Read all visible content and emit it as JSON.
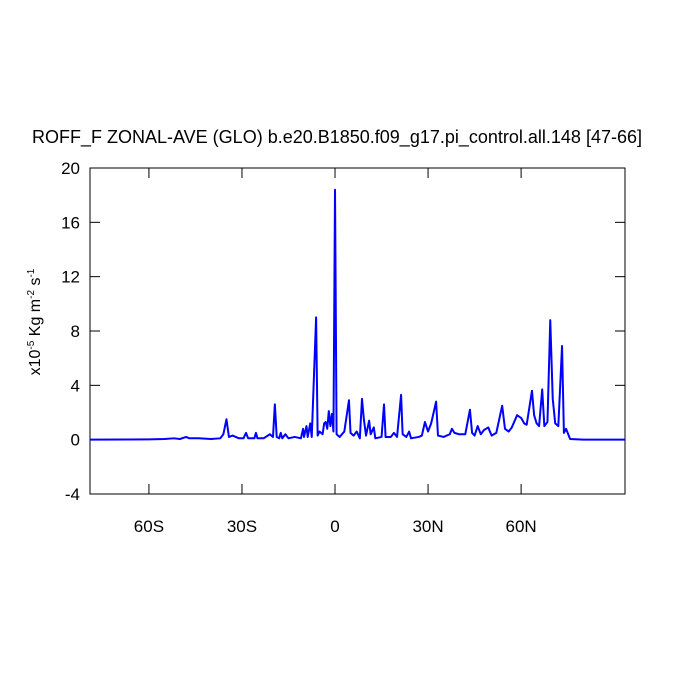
{
  "chart_data": {
    "type": "line",
    "title": "ROFF_F ZONAL-AVE (GLO) b.e20.B1850.f09_g17.pi_control.all.148 [47-66]",
    "ylabel": [
      "x10",
      "-5",
      " Kg m",
      "-2",
      " s",
      "-1"
    ],
    "color": "#0000ff",
    "xlim": [
      -79,
      93.5
    ],
    "xticks": [
      {
        "value": -60,
        "label": "60S"
      },
      {
        "value": -30,
        "label": "30S"
      },
      0,
      {
        "value": 30,
        "label": "30N"
      },
      {
        "value": 60,
        "label": "60N"
      }
    ],
    "ylim": [
      -4,
      20
    ],
    "yticks": [
      -4,
      0,
      4,
      8,
      12,
      16,
      20
    ],
    "x": [
      -79,
      -60,
      -55,
      -52,
      -50,
      -48,
      -47,
      -44,
      -40,
      -37,
      -36,
      -35,
      -34.2,
      -33,
      -31,
      -29.5,
      -28.7,
      -28,
      -26,
      -25.5,
      -25,
      -23,
      -21,
      -20,
      -19.4,
      -18.8,
      -18,
      -17.5,
      -17,
      -16,
      -15,
      -13,
      -11,
      -10.3,
      -10,
      -9.2,
      -8.8,
      -8,
      -7.5,
      -6.1,
      -5.6,
      -5,
      -4,
      -3.5,
      -3,
      -2.5,
      -2,
      -1.5,
      -1,
      -0.5,
      0,
      0.5,
      1.5,
      3,
      4.5,
      5,
      6,
      7,
      8,
      8.7,
      9.3,
      10,
      11,
      11.5,
      12.5,
      13,
      15,
      15.8,
      16.3,
      18,
      19,
      20,
      21.3,
      21.8,
      23,
      23.9,
      24.5,
      27,
      28,
      29,
      30,
      31,
      32.6,
      33.2,
      35,
      37,
      37.7,
      38.5,
      40,
      42,
      43.5,
      44.2,
      45,
      46,
      47,
      48,
      49.4,
      50.5,
      52,
      53.9,
      54.8,
      56,
      57,
      58.7,
      60,
      61,
      61.8,
      63.5,
      64.2,
      65,
      65.8,
      66.8,
      67.5,
      68.5,
      69.4,
      70.2,
      71,
      72,
      73.2,
      73.8,
      74.5,
      75.8,
      80,
      93.5
    ],
    "values": [
      0,
      0.02,
      0.05,
      0.1,
      0.05,
      0.2,
      0.1,
      0.1,
      0.05,
      0.1,
      0.4,
      1.5,
      0.2,
      0.3,
      0.1,
      0.1,
      0.5,
      0.1,
      0.1,
      0.5,
      0.1,
      0.1,
      0.4,
      0.2,
      2.6,
      0.2,
      0.1,
      0.5,
      0.1,
      0.4,
      0.1,
      0.2,
      0.1,
      0.8,
      0.2,
      1.0,
      0.2,
      1.2,
      0.2,
      9.0,
      0.3,
      0.6,
      0.4,
      1.2,
      1.3,
      0.8,
      2.1,
      1.0,
      1.9,
      0.6,
      18.4,
      0.4,
      0.2,
      0.6,
      2.9,
      0.5,
      0.3,
      0.6,
      0.1,
      3.0,
      1.5,
      0.3,
      1.4,
      0.4,
      0.9,
      0.1,
      0.2,
      2.6,
      0.2,
      0.2,
      0.5,
      0.2,
      3.3,
      0.4,
      0.2,
      0.6,
      0.1,
      0.2,
      0.3,
      1.3,
      0.6,
      1.2,
      2.8,
      0.3,
      0.2,
      0.4,
      0.8,
      0.5,
      0.4,
      0.4,
      2.2,
      0.5,
      0.3,
      1.0,
      0.4,
      0.7,
      0.9,
      0.3,
      0.5,
      2.5,
      0.8,
      0.6,
      0.9,
      1.8,
      1.6,
      1.2,
      1.1,
      3.6,
      1.8,
      1.2,
      1.0,
      3.7,
      1.0,
      1.3,
      8.8,
      3.0,
      1.2,
      1.0,
      6.9,
      0.5,
      0.8,
      0.05,
      0,
      0
    ]
  }
}
